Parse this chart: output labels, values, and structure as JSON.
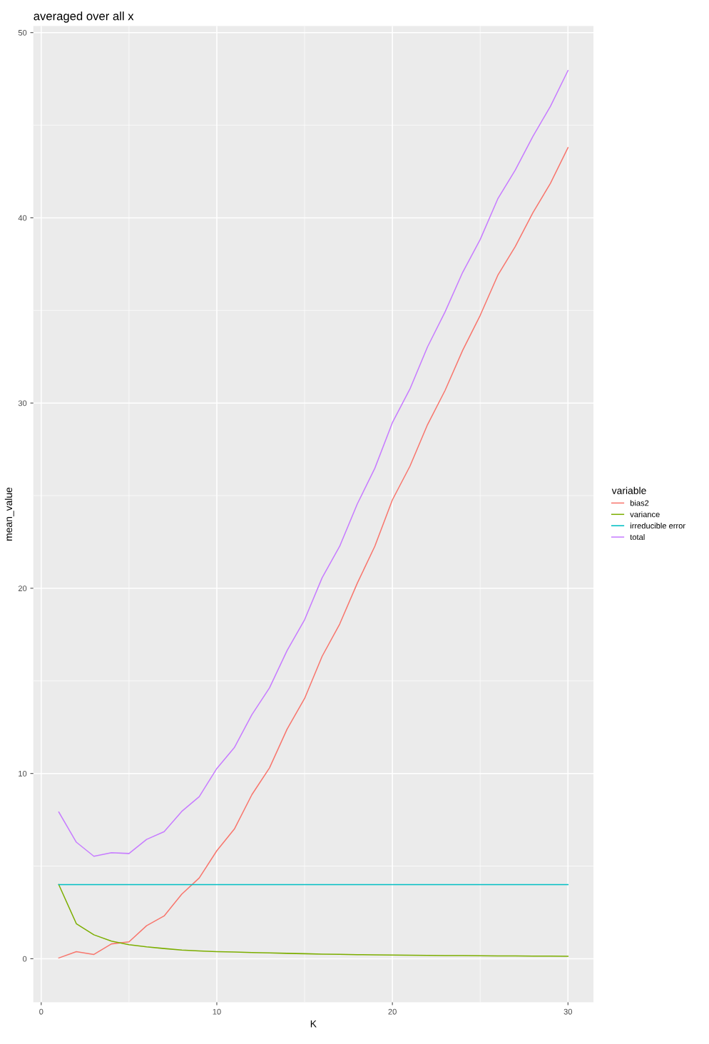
{
  "chart_data": {
    "type": "line",
    "title": "averaged over all x",
    "xlabel": "K",
    "ylabel": "mean_value",
    "legend_title": "variable",
    "legend": "right",
    "grid": true,
    "x": [
      1,
      2,
      3,
      4,
      5,
      6,
      7,
      8,
      9,
      10,
      11,
      12,
      13,
      14,
      15,
      16,
      17,
      18,
      19,
      20,
      21,
      22,
      23,
      24,
      25,
      26,
      27,
      28,
      29,
      30
    ],
    "series": [
      {
        "name": "bias2",
        "color": "#f8766d",
        "values": [
          0.04,
          0.38,
          0.23,
          0.8,
          0.91,
          1.78,
          2.31,
          3.48,
          4.36,
          5.83,
          7.0,
          8.86,
          10.3,
          12.39,
          14.05,
          16.33,
          18.07,
          20.27,
          22.27,
          24.77,
          26.59,
          28.83,
          30.68,
          32.84,
          34.73,
          36.89,
          38.45,
          40.27,
          41.86,
          43.79
        ]
      },
      {
        "name": "variance",
        "color": "#7cae00",
        "values": [
          4.0,
          1.89,
          1.29,
          0.95,
          0.76,
          0.64,
          0.55,
          0.47,
          0.42,
          0.38,
          0.36,
          0.33,
          0.31,
          0.29,
          0.27,
          0.25,
          0.24,
          0.22,
          0.21,
          0.2,
          0.19,
          0.18,
          0.17,
          0.17,
          0.16,
          0.15,
          0.15,
          0.14,
          0.14,
          0.13
        ]
      },
      {
        "name": "irreducible error",
        "color": "#00bfc4",
        "values": [
          4,
          4,
          4,
          4,
          4,
          4,
          4,
          4,
          4,
          4,
          4,
          4,
          4,
          4,
          4,
          4,
          4,
          4,
          4,
          4,
          4,
          4,
          4,
          4,
          4,
          4,
          4,
          4,
          4,
          4
        ]
      },
      {
        "name": "total",
        "color": "#c77cff",
        "values": [
          7.92,
          6.29,
          5.53,
          5.72,
          5.68,
          6.44,
          6.86,
          7.95,
          8.75,
          10.27,
          11.4,
          13.18,
          14.62,
          16.63,
          18.3,
          20.57,
          22.27,
          24.55,
          26.48,
          28.94,
          30.76,
          33.03,
          34.92,
          37.05,
          38.83,
          41.02,
          42.58,
          44.39,
          46.02,
          47.95
        ]
      }
    ],
    "xlim": [
      -0.45,
      31.45
    ],
    "ylim": [
      -2.35,
      50.35
    ],
    "xticks": [
      0,
      10,
      20,
      30
    ],
    "yticks": [
      0,
      10,
      20,
      30,
      40,
      50
    ]
  }
}
